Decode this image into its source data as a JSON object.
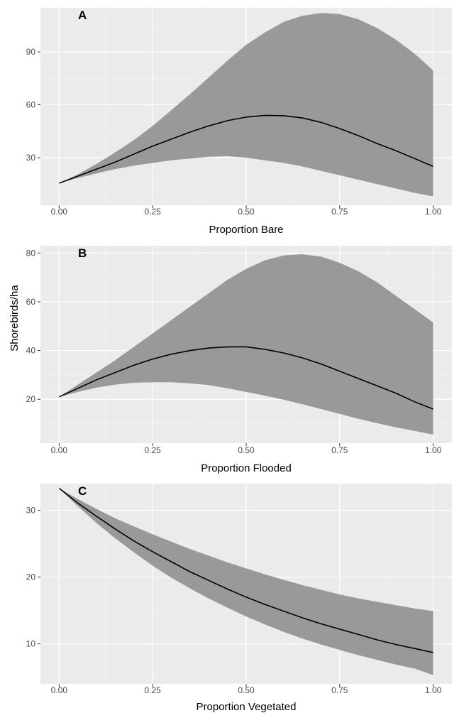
{
  "figure": {
    "shared_ylabel": "Shorebirds/ha"
  },
  "colors": {
    "panel_bg": "#ebebeb",
    "grid_major": "#ffffff",
    "grid_minor": "#f5f5f5",
    "ribbon": "#999999",
    "line": "#000000",
    "tick_text": "#4d4d4d"
  },
  "chart_data": [
    {
      "type": "line",
      "panel_label": "A",
      "xlabel": "Proportion Bare",
      "ylabel": "",
      "xlim": [
        -0.05,
        1.05
      ],
      "ylim": [
        3,
        115
      ],
      "x_ticks": [
        0.0,
        0.25,
        0.5,
        0.75,
        1.0
      ],
      "x_tick_labels": [
        "0.00",
        "0.25",
        "0.50",
        "0.75",
        "1.00"
      ],
      "y_ticks": [
        30,
        60,
        90
      ],
      "y_tick_labels": [
        "30",
        "60",
        "90"
      ],
      "grid": true,
      "x": [
        0.0,
        0.05,
        0.1,
        0.15,
        0.2,
        0.25,
        0.3,
        0.35,
        0.4,
        0.45,
        0.5,
        0.55,
        0.6,
        0.65,
        0.7,
        0.75,
        0.8,
        0.85,
        0.9,
        0.95,
        1.0
      ],
      "fit": [
        15.5,
        19.5,
        23.5,
        27.5,
        32.0,
        36.5,
        40.5,
        44.5,
        48.0,
        51.0,
        53.0,
        54.0,
        53.8,
        52.5,
        50.0,
        46.5,
        42.5,
        38.0,
        34.0,
        29.5,
        25.0
      ],
      "lower": [
        15.5,
        18.5,
        21.0,
        23.5,
        25.5,
        27.0,
        28.5,
        29.5,
        30.5,
        30.8,
        30.0,
        28.5,
        27.0,
        25.0,
        22.5,
        20.0,
        17.5,
        15.0,
        12.5,
        10.0,
        8.0
      ],
      "upper": [
        15.5,
        20.5,
        26.5,
        33.0,
        40.0,
        48.0,
        57.0,
        66.0,
        75.5,
        85.0,
        94.0,
        101.0,
        107.0,
        110.5,
        112.0,
        111.5,
        108.5,
        103.5,
        97.0,
        89.0,
        79.5
      ]
    },
    {
      "type": "line",
      "panel_label": "B",
      "xlabel": "Proportion Flooded",
      "ylabel": "Shorebirds/ha",
      "xlim": [
        -0.05,
        1.05
      ],
      "ylim": [
        2,
        83
      ],
      "x_ticks": [
        0.0,
        0.25,
        0.5,
        0.75,
        1.0
      ],
      "x_tick_labels": [
        "0.00",
        "0.25",
        "0.50",
        "0.75",
        "1.00"
      ],
      "y_ticks": [
        20,
        40,
        60,
        80
      ],
      "y_tick_labels": [
        "20",
        "40",
        "60",
        "80"
      ],
      "grid": true,
      "x": [
        0.0,
        0.05,
        0.1,
        0.15,
        0.2,
        0.25,
        0.3,
        0.35,
        0.4,
        0.45,
        0.5,
        0.55,
        0.6,
        0.65,
        0.7,
        0.75,
        0.8,
        0.85,
        0.9,
        0.95,
        1.0
      ],
      "fit": [
        21.0,
        24.5,
        28.0,
        31.0,
        34.0,
        36.5,
        38.5,
        40.0,
        41.0,
        41.5,
        41.5,
        40.5,
        39.0,
        37.0,
        34.5,
        31.5,
        28.5,
        25.5,
        22.5,
        19.0,
        16.0
      ],
      "lower": [
        21.0,
        23.0,
        24.8,
        26.0,
        26.8,
        27.0,
        27.0,
        26.5,
        25.8,
        24.5,
        23.0,
        21.5,
        19.8,
        18.0,
        16.0,
        14.0,
        12.0,
        10.2,
        8.5,
        7.0,
        5.5
      ],
      "upper": [
        21.0,
        26.0,
        31.0,
        36.0,
        41.5,
        47.0,
        52.5,
        58.0,
        63.5,
        69.0,
        73.5,
        77.0,
        79.0,
        79.5,
        78.5,
        76.0,
        72.5,
        68.0,
        62.5,
        57.0,
        51.5
      ]
    },
    {
      "type": "line",
      "panel_label": "C",
      "xlabel": "Proportion Vegetated",
      "ylabel": "",
      "xlim": [
        -0.05,
        1.05
      ],
      "ylim": [
        4,
        34
      ],
      "x_ticks": [
        0.0,
        0.25,
        0.5,
        0.75,
        1.0
      ],
      "x_tick_labels": [
        "0.00",
        "0.25",
        "0.50",
        "0.75",
        "1.00"
      ],
      "y_ticks": [
        10,
        20,
        30
      ],
      "y_tick_labels": [
        "10",
        "20",
        "30"
      ],
      "grid": true,
      "x": [
        0.0,
        0.05,
        0.1,
        0.15,
        0.2,
        0.25,
        0.3,
        0.35,
        0.4,
        0.45,
        0.5,
        0.55,
        0.6,
        0.65,
        0.7,
        0.75,
        0.8,
        0.85,
        0.9,
        0.95,
        1.0
      ],
      "fit": [
        33.3,
        31.1,
        29.1,
        27.2,
        25.4,
        23.8,
        22.3,
        20.8,
        19.5,
        18.2,
        17.0,
        15.9,
        14.9,
        13.9,
        13.0,
        12.2,
        11.4,
        10.6,
        9.9,
        9.3,
        8.7
      ],
      "lower": [
        33.3,
        30.6,
        28.1,
        25.8,
        23.7,
        21.7,
        19.9,
        18.3,
        16.8,
        15.4,
        14.1,
        12.9,
        11.8,
        10.8,
        9.9,
        9.1,
        8.3,
        7.6,
        6.9,
        6.3,
        5.3
      ],
      "upper": [
        33.3,
        31.7,
        30.2,
        28.8,
        27.6,
        26.4,
        25.3,
        24.2,
        23.2,
        22.2,
        21.3,
        20.4,
        19.6,
        18.8,
        18.1,
        17.4,
        16.8,
        16.3,
        15.8,
        15.3,
        14.9
      ]
    }
  ]
}
